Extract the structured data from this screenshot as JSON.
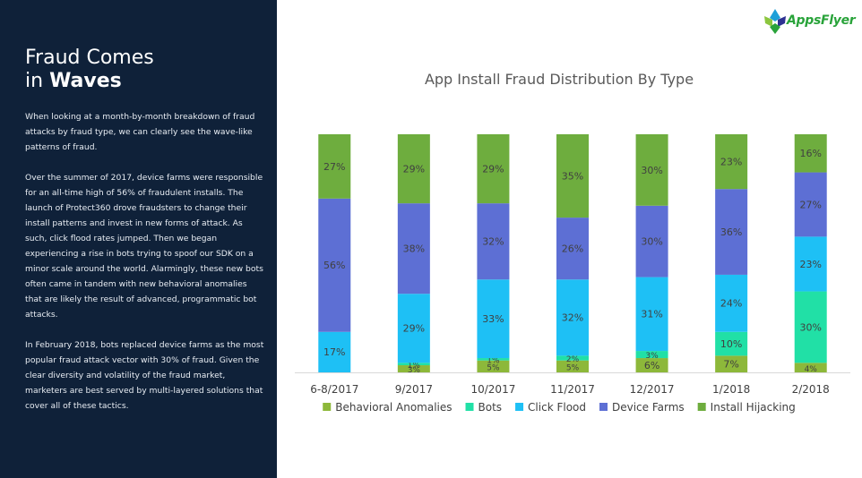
{
  "sidebar": {
    "title_line1": "Fraud Comes",
    "title_in": "in",
    "title_bold": "Waves",
    "paragraphs": [
      "When looking at a month-by-month breakdown of fraud attacks by fraud type, we can clearly see the wave-like patterns of fraud.",
      "Over the summer of 2017, device farms were responsible for an all-time high of 56% of fraudulent installs. The launch of Protect360 drove fraudsters to change their install patterns and invest in new forms of attack. As such, click flood rates jumped. Then we began experiencing a rise in bots trying to spoof our SDK on a minor scale around the world. Alarmingly, these new bots often came in tandem with new behavioral anomalies that are likely the result of advanced, programmatic bot attacks.",
      "In February 2018, bots replaced device farms as the most popular fraud attack vector with 30% of fraud. Given the clear diversity and volatility of the fraud market, marketers are best served by multi-layered solutions that cover all of these tactics."
    ]
  },
  "logo": {
    "text": "AppsFlyer",
    "icon": "appsflyer-leaf-icon",
    "colors": [
      "#1ea0d8",
      "#8cc63f",
      "#2e3192",
      "#29a33a"
    ]
  },
  "chart_data": {
    "type": "bar",
    "stacked": true,
    "normalized_percent": true,
    "title": "App Install Fraud Distribution By Type",
    "categories": [
      "6-8/2017",
      "9/2017",
      "10/2017",
      "11/2017",
      "12/2017",
      "1/2018",
      "2/2018"
    ],
    "series": [
      {
        "name": "Behavioral Anomalies",
        "color": "#8db83a",
        "values": [
          0,
          3,
          5,
          5,
          6,
          7,
          4
        ],
        "labels": [
          "",
          "3%",
          "5%",
          "5%",
          "6%",
          "7%",
          "4%"
        ]
      },
      {
        "name": "Bots",
        "color": "#21e0a6",
        "values": [
          0,
          1,
          1,
          2,
          3,
          10,
          30
        ],
        "labels": [
          "",
          "1%",
          "1%",
          "2%",
          "3%",
          "10%",
          "30%"
        ]
      },
      {
        "name": "Click Flood",
        "color": "#1ec0f5",
        "values": [
          17,
          29,
          33,
          32,
          31,
          24,
          23
        ],
        "labels": [
          "17%",
          "29%",
          "33%",
          "32%",
          "31%",
          "24%",
          "23%"
        ]
      },
      {
        "name": "Device Farms",
        "color": "#5d6fd4",
        "values": [
          56,
          38,
          32,
          26,
          30,
          36,
          27
        ],
        "labels": [
          "56%",
          "38%",
          "32%",
          "26%",
          "30%",
          "36%",
          "27%"
        ]
      },
      {
        "name": "Install Hijacking",
        "color": "#6ead3e",
        "values": [
          27,
          29,
          29,
          35,
          30,
          23,
          16
        ],
        "labels": [
          "27%",
          "29%",
          "29%",
          "35%",
          "30%",
          "23%",
          "16%"
        ]
      }
    ],
    "legend_position": "bottom",
    "grid": false,
    "colors": {
      "label_text": "#404040",
      "axis_text": "#404040",
      "axis_line": "#d9d9d9"
    }
  }
}
